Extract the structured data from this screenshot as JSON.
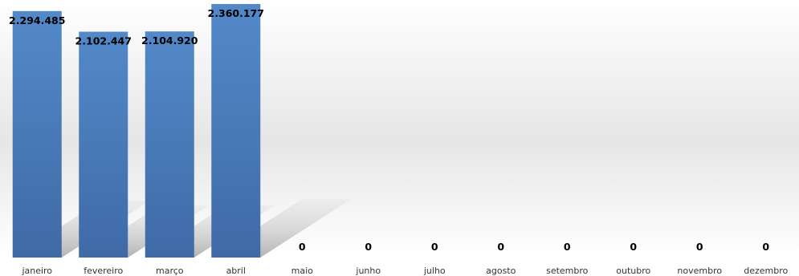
{
  "chart_data": {
    "type": "bar",
    "categories": [
      "janeiro",
      "fevereiro",
      "março",
      "abril",
      "maio",
      "junho",
      "julho",
      "agosto",
      "setembro",
      "outubro",
      "novembro",
      "dezembro"
    ],
    "values": [
      2294485,
      2102447,
      2104920,
      2360177,
      0,
      0,
      0,
      0,
      0,
      0,
      0,
      0
    ],
    "data_labels": [
      "2.294.485",
      "2.102.447",
      "2.104.920",
      "2.360.177",
      "0",
      "0",
      "0",
      "0",
      "0",
      "0",
      "0",
      "0"
    ],
    "title": "",
    "xlabel": "",
    "ylabel": "",
    "ylim": [
      0,
      2360177
    ],
    "grid": false,
    "legend": "none",
    "bar_color": "#4a77b4"
  }
}
